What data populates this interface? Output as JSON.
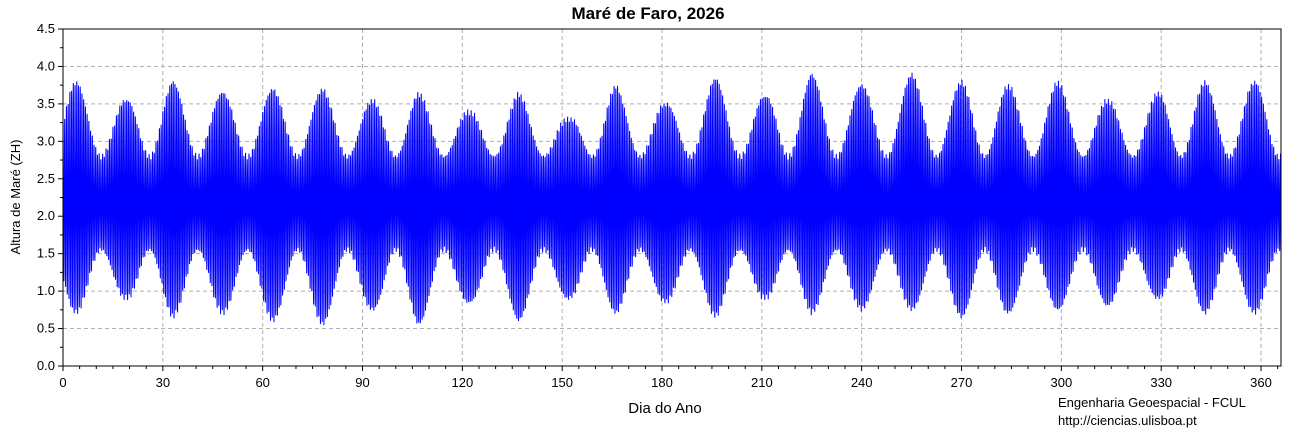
{
  "chart_data": {
    "type": "line",
    "title": "Maré de Faro, 2026",
    "xlabel": "Dia do Ano",
    "ylabel": "Altura de Maré (ZH)",
    "xlim": [
      0,
      366
    ],
    "ylim": [
      0,
      4.5
    ],
    "xticks": [
      0,
      30,
      60,
      90,
      120,
      150,
      180,
      210,
      240,
      270,
      300,
      330,
      360
    ],
    "yticks": [
      0.0,
      0.5,
      1.0,
      1.5,
      2.0,
      2.5,
      3.0,
      3.5,
      4.0,
      4.5
    ],
    "ytick_labels": [
      "0.0",
      "0.5",
      "1.0",
      "1.5",
      "2.0",
      "2.5",
      "3.0",
      "3.5",
      "4.0",
      "4.5"
    ],
    "grid": true,
    "line_color": "#0000ff",
    "series_description_values": {
      "mean_level": 2.2,
      "sampling": "semidiurnal tide, ~12.42 h period",
      "spring_tide_days": [
        4,
        19,
        33,
        48,
        63,
        78,
        93,
        107,
        122,
        137,
        152,
        166,
        181,
        196,
        211,
        225,
        240,
        255,
        270,
        284,
        299,
        314,
        329,
        343,
        358
      ],
      "spring_tide_highs": [
        3.8,
        3.55,
        3.8,
        3.65,
        3.7,
        3.7,
        3.55,
        3.65,
        3.4,
        3.65,
        3.3,
        3.75,
        3.5,
        3.85,
        3.6,
        3.9,
        3.75,
        3.9,
        3.8,
        3.75,
        3.8,
        3.55,
        3.65,
        3.8,
        3.8
      ],
      "spring_tide_lows": [
        0.7,
        0.9,
        0.65,
        0.7,
        0.6,
        0.55,
        0.75,
        0.55,
        0.85,
        0.6,
        0.9,
        0.7,
        0.85,
        0.65,
        0.9,
        0.7,
        0.75,
        0.75,
        0.65,
        0.7,
        0.75,
        0.8,
        0.9,
        0.7,
        0.7
      ],
      "neap_tide_highs": 2.8,
      "neap_tide_lows": 1.55
    }
  },
  "credits": {
    "line1": "Engenharia Geoespacial - FCUL",
    "line2": "http://ciencias.ulisboa.pt"
  }
}
